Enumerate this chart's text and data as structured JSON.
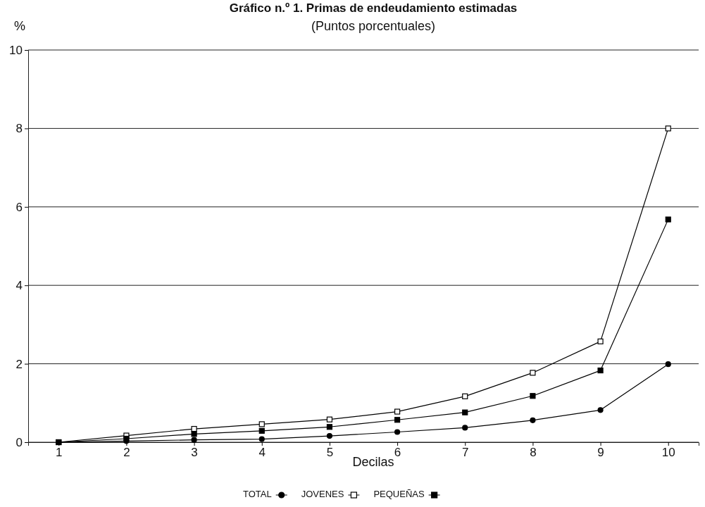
{
  "chart_data": {
    "type": "line",
    "title": "Gráfico n.º 1. Primas de endeudamiento estimadas",
    "subtitle": "(Puntos porcentuales)",
    "ylabel": "%",
    "xlabel": "Decilas",
    "categories": [
      "1",
      "2",
      "3",
      "4",
      "5",
      "6",
      "7",
      "8",
      "9",
      "10"
    ],
    "series": [
      {
        "name": "TOTAL",
        "color": "#000000",
        "marker": "circle",
        "values": [
          0,
          0.03,
          0.06,
          0.08,
          0.16,
          0.26,
          0.37,
          0.56,
          0.82,
          1.99
        ]
      },
      {
        "name": "JOVENES",
        "color": "#000000",
        "marker": "square",
        "values": [
          0,
          0.17,
          0.34,
          0.46,
          0.58,
          0.78,
          1.17,
          1.77,
          2.57,
          8.0
        ]
      },
      {
        "name": "PEQUEÑAS",
        "color": "#000000",
        "marker": "square",
        "values": [
          0,
          0.09,
          0.21,
          0.29,
          0.39,
          0.57,
          0.76,
          1.18,
          1.83,
          5.68
        ]
      }
    ],
    "ylim": [
      0,
      10
    ],
    "yticks": [
      0,
      2,
      4,
      6,
      8,
      10
    ],
    "grid": "y",
    "legend": "bottom",
    "line_style": "solid"
  }
}
